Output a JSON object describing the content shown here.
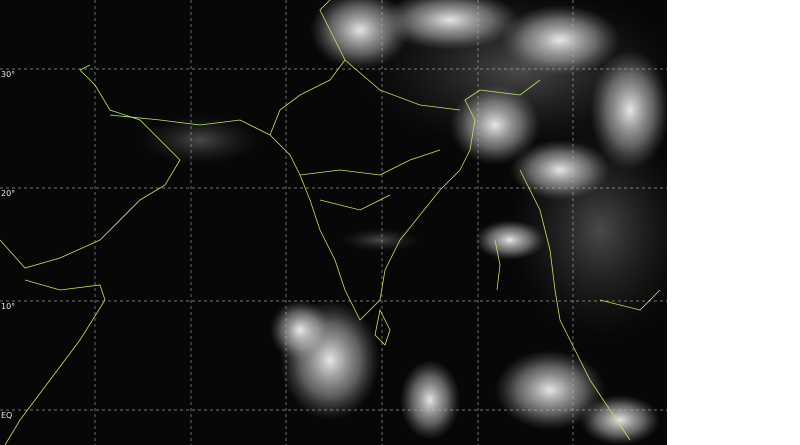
{
  "map": {
    "type": "satellite-infrared-image",
    "latitude_labels": [
      "30°",
      "20°",
      "10°",
      "EQ"
    ],
    "colors": {
      "background": "#070707",
      "border": "#b8e86a",
      "grid": "#bdbdbd",
      "cloud": "#ffffff"
    }
  }
}
